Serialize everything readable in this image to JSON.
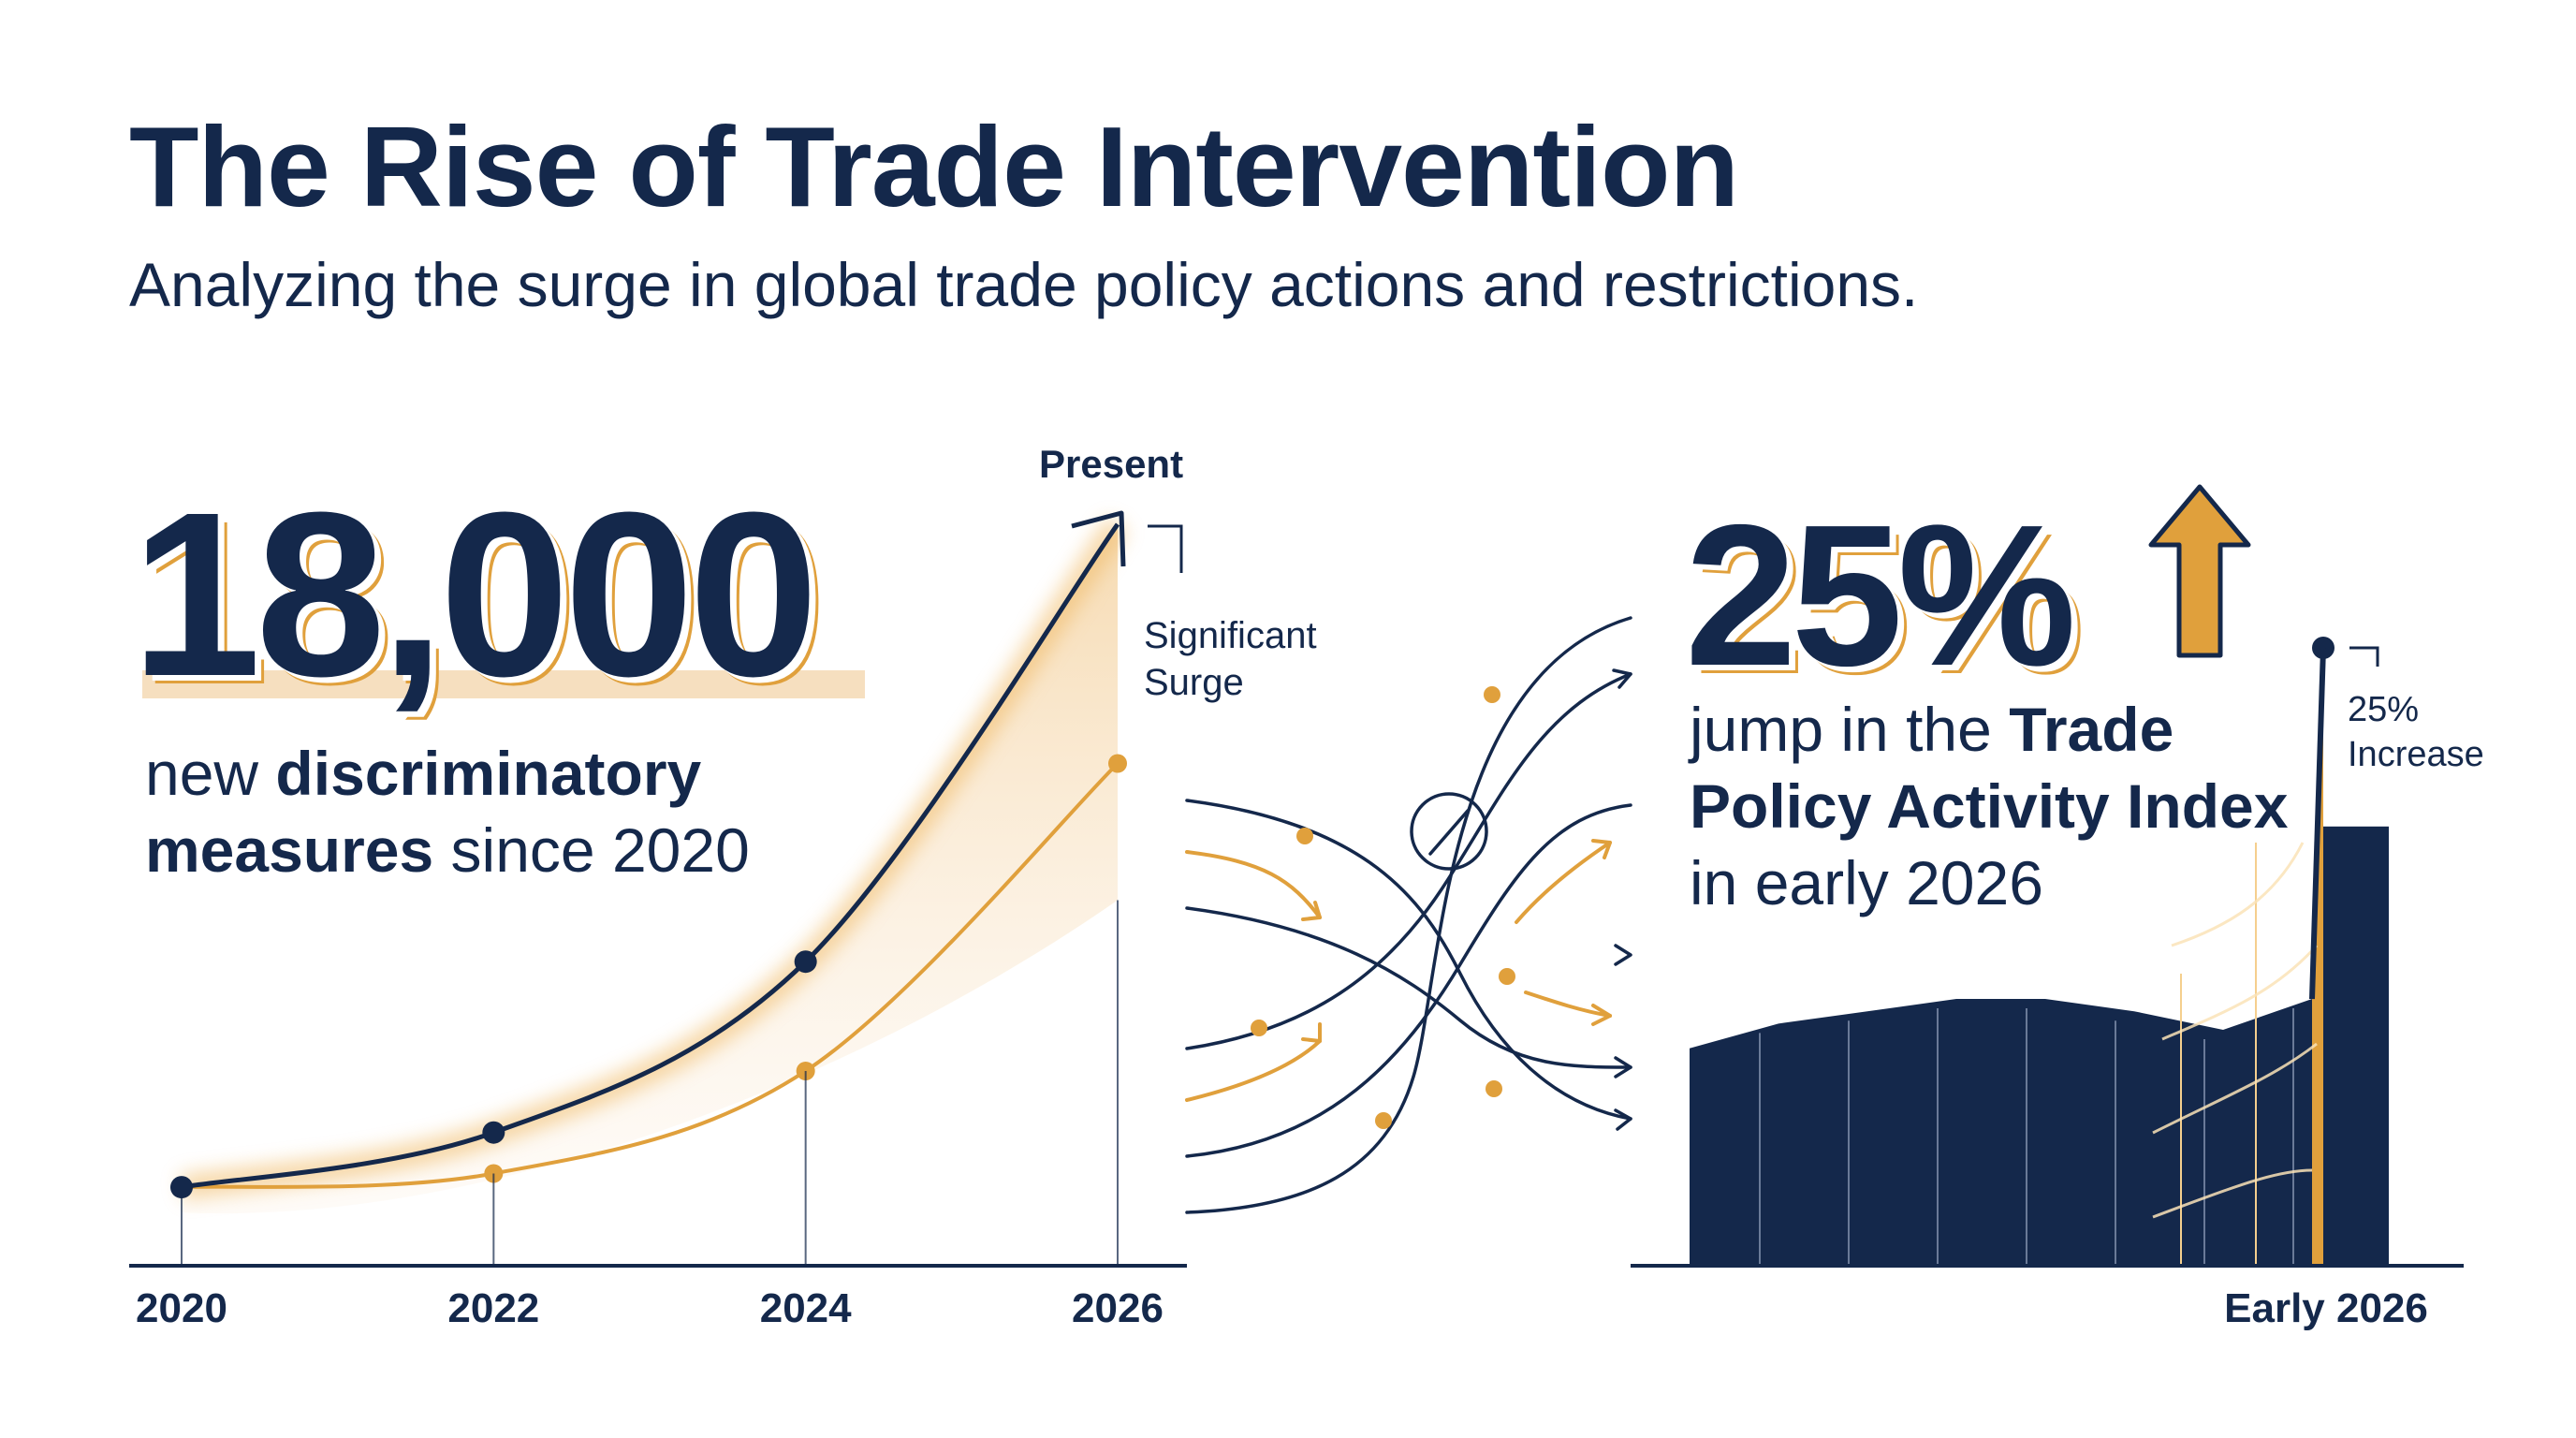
{
  "header": {
    "title": "The Rise of Trade Intervention",
    "subtitle": "Analyzing the surge in global trade policy actions and restrictions."
  },
  "left_stat": {
    "value": "18,000",
    "desc_part1": "new ",
    "desc_bold": "discriminatory measures",
    "desc_part2": " since 2020"
  },
  "right_stat": {
    "value": "25%",
    "desc_part1": "jump in the ",
    "desc_bold": "Trade Policy Activity Index",
    "desc_part2": " in early 2026"
  },
  "colors": {
    "navy": "#14284b",
    "gold": "#e0a03c",
    "gold_light": "#f6dfbf"
  },
  "chart_data": [
    {
      "type": "line",
      "x": [
        2020,
        2022,
        2024,
        2026
      ],
      "series": [
        {
          "values": [
            0.03,
            0.11,
            0.36,
            1.0
          ]
        },
        {
          "values": [
            0.03,
            0.05,
            0.2,
            0.65
          ]
        }
      ],
      "xlabels": [
        "2020",
        "2022",
        "2024",
        "2026"
      ],
      "annotations": {
        "present": "Present",
        "surge_line1": "Significant",
        "surge_line2": "Surge"
      }
    },
    {
      "type": "area",
      "categories_label": "Early 2026",
      "values": [
        0.35,
        0.39,
        0.41,
        0.43,
        0.43,
        0.41,
        0.38,
        0.43,
        1.0,
        0.71
      ],
      "annotations": {
        "increase_line1": "25%",
        "increase_line2": "Increase"
      }
    }
  ]
}
